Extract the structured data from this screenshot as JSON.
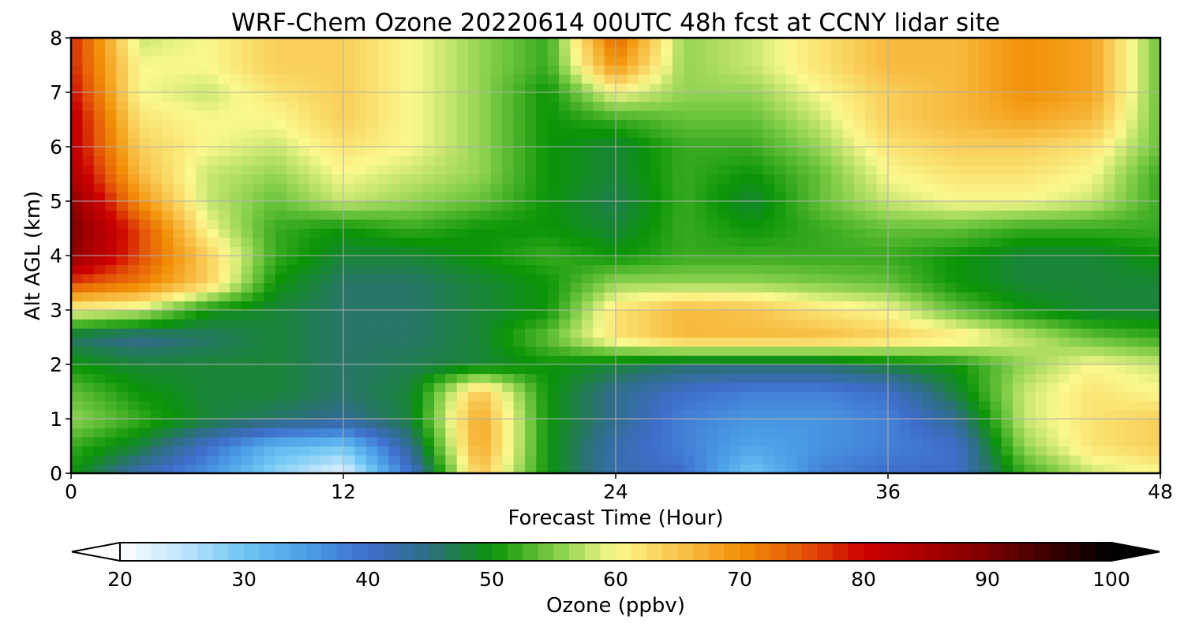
{
  "chart_data": {
    "type": "heatmap",
    "title": "WRF-Chem Ozone  20220614 00UTC 48h fcst at CCNY lidar site",
    "xlabel": "Forecast Time (Hour)",
    "ylabel": "Alt AGL (km)",
    "xlim": [
      0,
      48
    ],
    "ylim": [
      0,
      8
    ],
    "x_ticks": [
      "0",
      "12",
      "24",
      "36",
      "48"
    ],
    "y_ticks": [
      "0",
      "1",
      "2",
      "3",
      "4",
      "5",
      "6",
      "7",
      "8"
    ],
    "grid": true,
    "x": [
      0,
      3,
      6,
      9,
      12,
      15,
      18,
      21,
      24,
      27,
      30,
      33,
      36,
      39,
      42,
      45,
      48
    ],
    "y": [
      0,
      0.5,
      1,
      1.5,
      2,
      2.5,
      3,
      3.5,
      4,
      4.5,
      5,
      5.5,
      6,
      6.5,
      7,
      7.5,
      8
    ],
    "z": [
      [
        50,
        42,
        36,
        28,
        22,
        40,
        65,
        50,
        42,
        40,
        30,
        38,
        40,
        40,
        52,
        58,
        60
      ],
      [
        52,
        48,
        40,
        32,
        30,
        44,
        68,
        50,
        42,
        38,
        34,
        36,
        38,
        40,
        56,
        62,
        64
      ],
      [
        56,
        52,
        48,
        46,
        44,
        48,
        68,
        50,
        44,
        38,
        36,
        36,
        38,
        44,
        58,
        62,
        64
      ],
      [
        54,
        50,
        48,
        48,
        46,
        48,
        65,
        50,
        44,
        40,
        38,
        38,
        40,
        48,
        58,
        62,
        60
      ],
      [
        50,
        48,
        48,
        48,
        46,
        47,
        48,
        50,
        48,
        46,
        46,
        46,
        48,
        50,
        56,
        60,
        58
      ],
      [
        46,
        44,
        46,
        48,
        46,
        46,
        48,
        54,
        62,
        66,
        66,
        66,
        64,
        62,
        58,
        54,
        52
      ],
      [
        60,
        58,
        50,
        48,
        46,
        46,
        48,
        50,
        62,
        66,
        65,
        62,
        60,
        54,
        50,
        48,
        48
      ],
      [
        76,
        72,
        64,
        50,
        46,
        46,
        48,
        50,
        56,
        56,
        56,
        55,
        54,
        50,
        48,
        48,
        48
      ],
      [
        88,
        76,
        64,
        52,
        48,
        48,
        50,
        52,
        50,
        52,
        52,
        52,
        52,
        50,
        48,
        48,
        50
      ],
      [
        90,
        76,
        60,
        52,
        50,
        52,
        50,
        50,
        48,
        52,
        50,
        52,
        54,
        54,
        52,
        52,
        52
      ],
      [
        88,
        70,
        58,
        54,
        58,
        56,
        54,
        50,
        47,
        52,
        48,
        54,
        58,
        60,
        60,
        58,
        52
      ],
      [
        84,
        66,
        58,
        56,
        60,
        58,
        56,
        50,
        48,
        52,
        50,
        54,
        60,
        62,
        62,
        60,
        52
      ],
      [
        82,
        64,
        60,
        58,
        62,
        60,
        56,
        50,
        48,
        52,
        52,
        56,
        62,
        64,
        64,
        62,
        54
      ],
      [
        82,
        62,
        60,
        60,
        64,
        60,
        56,
        50,
        52,
        54,
        54,
        58,
        64,
        66,
        68,
        66,
        54
      ],
      [
        80,
        60,
        58,
        62,
        64,
        60,
        56,
        50,
        60,
        56,
        56,
        60,
        64,
        66,
        70,
        68,
        54
      ],
      [
        78,
        60,
        60,
        64,
        64,
        60,
        56,
        52,
        70,
        56,
        58,
        62,
        66,
        66,
        70,
        68,
        54
      ],
      [
        78,
        58,
        60,
        64,
        64,
        60,
        56,
        52,
        74,
        56,
        58,
        62,
        66,
        66,
        70,
        68,
        54
      ]
    ],
    "colorbar": {
      "label": "Ozone  (ppbv)",
      "min": 20,
      "max": 100,
      "ticks": [
        "20",
        "30",
        "40",
        "50",
        "60",
        "70",
        "80",
        "90",
        "100"
      ],
      "extend": "both",
      "stops": [
        {
          "v": 20,
          "c": "#ffffff"
        },
        {
          "v": 25,
          "c": "#bfe6fb"
        },
        {
          "v": 30,
          "c": "#6ec6f4"
        },
        {
          "v": 35,
          "c": "#4a9fe6"
        },
        {
          "v": 40,
          "c": "#3e6dcb"
        },
        {
          "v": 45,
          "c": "#2e6e80"
        },
        {
          "v": 50,
          "c": "#0a9406"
        },
        {
          "v": 55,
          "c": "#7ccb46"
        },
        {
          "v": 60,
          "c": "#fbf98e"
        },
        {
          "v": 65,
          "c": "#f8c44c"
        },
        {
          "v": 70,
          "c": "#f29107"
        },
        {
          "v": 75,
          "c": "#e45608"
        },
        {
          "v": 80,
          "c": "#cc0000"
        },
        {
          "v": 85,
          "c": "#aa0000"
        },
        {
          "v": 90,
          "c": "#7a0000"
        },
        {
          "v": 95,
          "c": "#3a0000"
        },
        {
          "v": 100,
          "c": "#000000"
        }
      ]
    }
  }
}
